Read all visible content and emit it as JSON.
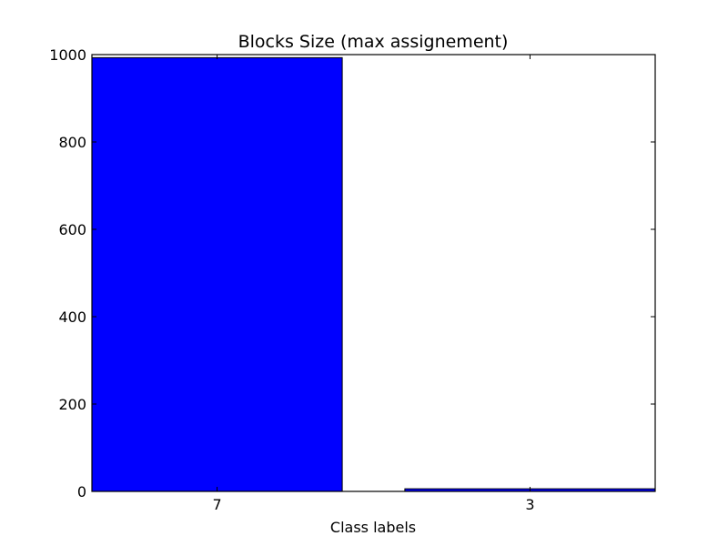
{
  "chart_data": {
    "type": "bar",
    "title": "Blocks Size (max assignement)",
    "xlabel": "Class labels",
    "ylabel": "",
    "categories": [
      "7",
      "3"
    ],
    "values": [
      993,
      6
    ],
    "ylim": [
      0,
      1000
    ],
    "yticks": [
      0,
      200,
      400,
      600,
      800,
      1000
    ],
    "grid": false,
    "bar_color": "#0000ff",
    "edge_color": "#000000"
  }
}
